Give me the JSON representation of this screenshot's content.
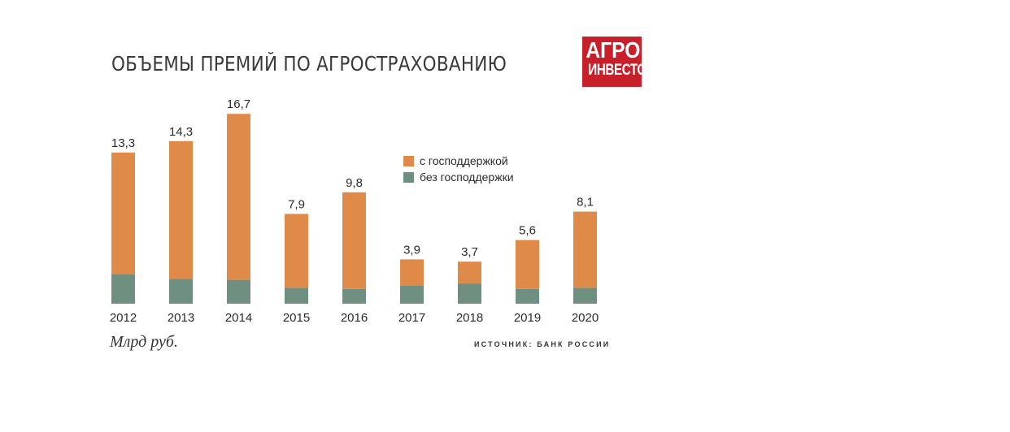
{
  "header": {
    "title": "ОБЪЕМЫ ПРЕМИЙ ПО АГРОСТРАХОВАНИЮ",
    "logo_line1": "АГРО",
    "logo_line2": "ИНВЕСТОР"
  },
  "footer": {
    "unit": "Млрд руб.",
    "source": "ИСТОЧНИК: БАНК РОССИИ"
  },
  "colors": {
    "with_support": "#e08a4a",
    "without_support": "#6f8f80",
    "logo": "#c8202a"
  },
  "chart_data": {
    "type": "bar",
    "stacked": true,
    "categories": [
      "2012",
      "2013",
      "2014",
      "2015",
      "2016",
      "2017",
      "2018",
      "2019",
      "2020"
    ],
    "totals": [
      13.3,
      14.3,
      16.7,
      7.9,
      9.8,
      3.9,
      3.7,
      5.6,
      8.1
    ],
    "total_labels": [
      "13,3",
      "14,3",
      "16,7",
      "7,9",
      "9,8",
      "3,9",
      "3,7",
      "5,6",
      "8,1"
    ],
    "series": [
      {
        "name": "без господдержки",
        "values": [
          2.6,
          2.2,
          2.1,
          1.4,
          1.3,
          1.6,
          1.8,
          1.3,
          1.4
        ]
      },
      {
        "name": "с господдержкой",
        "values": [
          10.7,
          12.1,
          14.6,
          6.5,
          8.5,
          2.3,
          1.9,
          4.3,
          6.7
        ]
      }
    ],
    "legend": [
      "с господдержкой",
      "без господдержки"
    ],
    "legend_position": "top-right",
    "ylim": [
      0,
      17
    ],
    "grid": false
  }
}
